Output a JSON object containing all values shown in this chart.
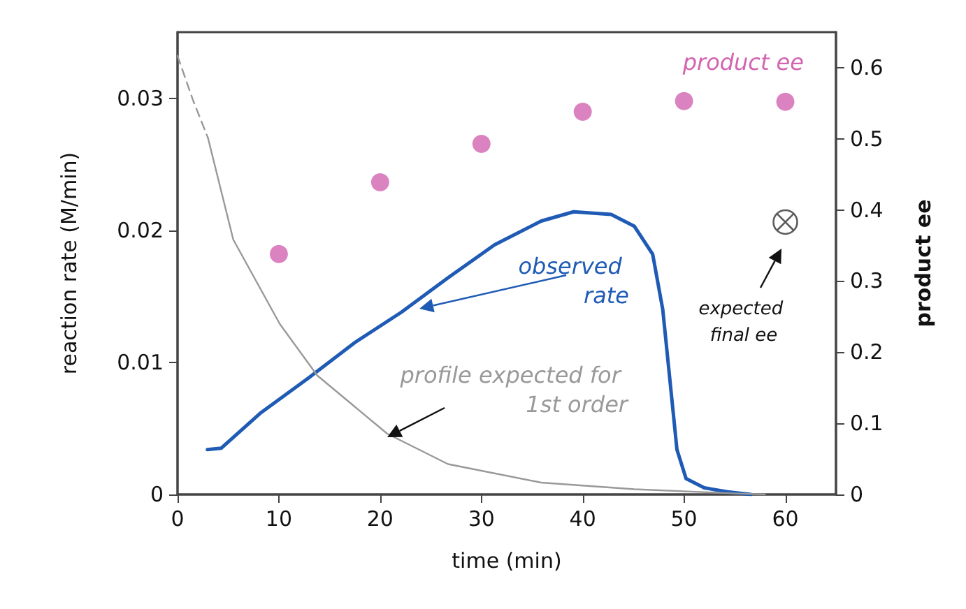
{
  "chart_data": {
    "type": "line",
    "xlabel": "time (min)",
    "ylabel": "reaction rate (M/min)",
    "y2label": "product ee",
    "xlim": [
      0,
      65
    ],
    "xticks": [
      0,
      10,
      20,
      30,
      40,
      50,
      60
    ],
    "ylim": [
      0,
      0.035
    ],
    "yticks": [
      0,
      0.01,
      0.02,
      0.03
    ],
    "y2lim": [
      0,
      0.65
    ],
    "y2ticks": [
      0,
      0.1,
      0.2,
      0.3,
      0.4,
      0.5,
      0.6
    ],
    "grid": false,
    "marker": "none",
    "line_style": "solid",
    "series": [
      {
        "name": "observed rate",
        "color": "#1f5bb5",
        "x": [
          2.95,
          4.3,
          8.25,
          12.9,
          17.5,
          22.1,
          26.7,
          31.3,
          35.9,
          39.1,
          42.8,
          45.1,
          46.9,
          47.9,
          48.6,
          49.3,
          50.2,
          52.0,
          54.3,
          56.6
        ],
        "values": [
          0.0034,
          0.0035,
          0.0062,
          0.0088,
          0.0115,
          0.0138,
          0.0164,
          0.0189,
          0.0207,
          0.0214,
          0.0212,
          0.0203,
          0.0182,
          0.014,
          0.0087,
          0.0034,
          0.0012,
          0.0005,
          0.0002,
          0
        ]
      },
      {
        "name": "profile expected for 1st order",
        "color": "#999999",
        "x": [
          3,
          5.5,
          10.1,
          13.8,
          20.7,
          26.7,
          35.9,
          45.1,
          54.3,
          58
        ],
        "values": [
          0.027,
          0.0193,
          0.0129,
          0.009,
          0.0046,
          0.0023,
          0.0009,
          0.0004,
          0.0001,
          0
        ]
      },
      {
        "color": "#999999",
        "line_style": "dashed",
        "x": [
          0,
          1.5,
          3
        ],
        "values": [
          0.0332,
          0.0299,
          0.027
        ]
      },
      {
        "name": "product ee",
        "type": "scatter",
        "axis": "y2",
        "marker": "circle",
        "color": "#d264b0",
        "x": [
          10,
          20,
          30,
          40,
          50,
          60
        ],
        "values": [
          0.338,
          0.439,
          0.493,
          0.538,
          0.553,
          0.552
        ]
      },
      {
        "name": "expected final ee",
        "type": "scatter",
        "axis": "y2",
        "marker": "cross",
        "color": "#333333",
        "x": [
          60
        ],
        "values": [
          0.383
        ]
      }
    ]
  }
}
